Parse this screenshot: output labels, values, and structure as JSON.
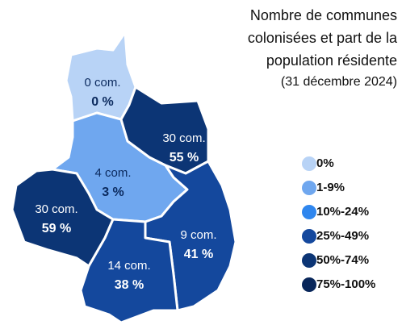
{
  "title_lines": [
    "Nombre de communes",
    "colonisées et part de la",
    "population résidente",
    "(31 décembre 2024)"
  ],
  "regions": [
    {
      "communes": "0 com.",
      "share": "0 %",
      "color": "#b8d3f6",
      "text_color": "#0b2a5e"
    },
    {
      "communes": "4 com.",
      "share": "3 %",
      "color": "#6fa7ef",
      "text_color": "#0b2a5e"
    },
    {
      "communes": "30 com.",
      "share": "55 %",
      "color": "#0c3575",
      "text_color": "#ffffff"
    },
    {
      "communes": "30 com.",
      "share": "59 %",
      "color": "#0c3575",
      "text_color": "#ffffff"
    },
    {
      "communes": "9 com.",
      "share": "41 %",
      "color": "#14489d",
      "text_color": "#ffffff"
    },
    {
      "communes": "14 com.",
      "share": "38 %",
      "color": "#14489d",
      "text_color": "#ffffff"
    }
  ],
  "legend": [
    {
      "label": "0%",
      "color": "#b8d3f6"
    },
    {
      "label": "1-9%",
      "color": "#6fa7ef"
    },
    {
      "label": "10%-24%",
      "color": "#2f86ee"
    },
    {
      "label": "25%-49%",
      "color": "#14489d"
    },
    {
      "label": "50%-74%",
      "color": "#0c3575"
    },
    {
      "label": "75%-100%",
      "color": "#08265a"
    }
  ]
}
